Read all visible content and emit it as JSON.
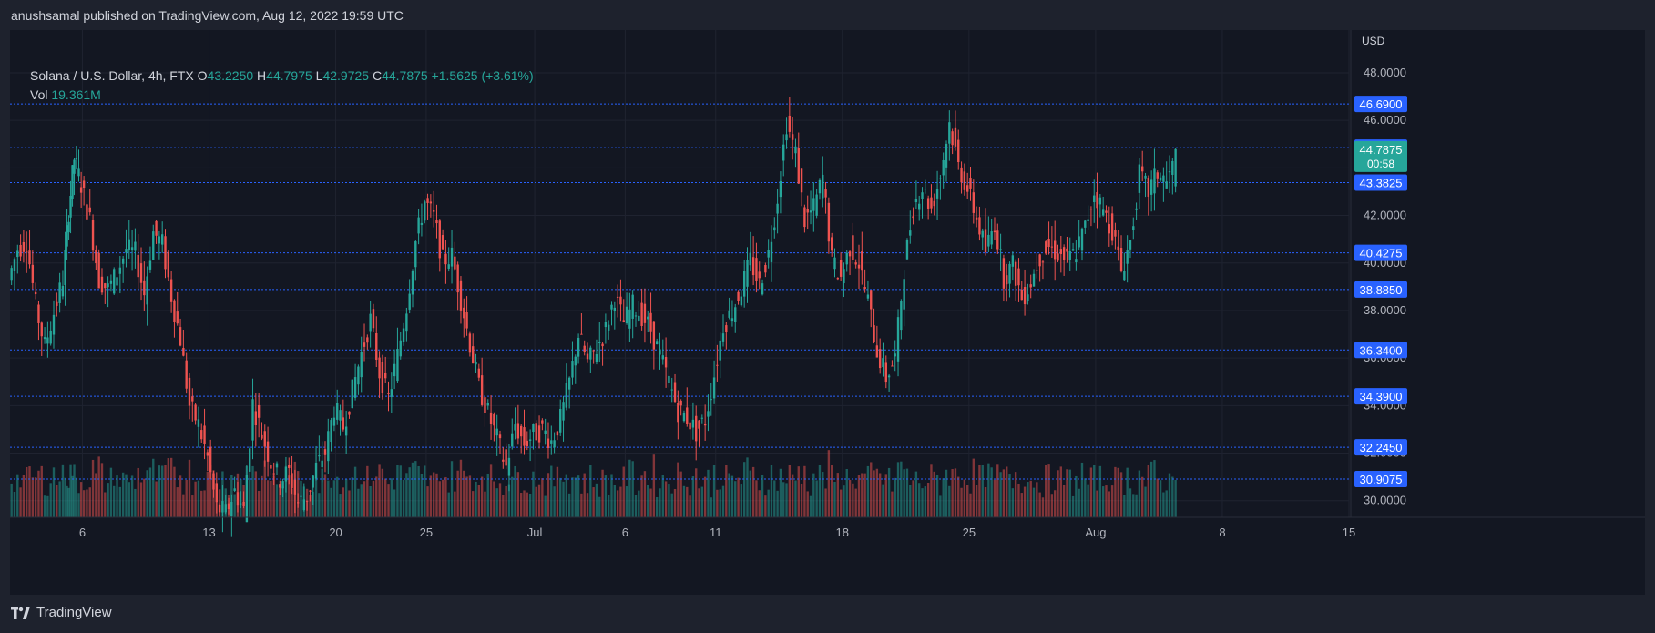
{
  "header": {
    "publish_line": "anushsamal published on TradingView.com, Aug 12, 2022 19:59 UTC"
  },
  "legend": {
    "symbol": "Solana / U.S. Dollar, 4h, FTX",
    "o_label": "O",
    "o_value": "43.2250",
    "h_label": "H",
    "h_value": "44.7975",
    "l_label": "L",
    "l_value": "42.9725",
    "c_label": "C",
    "c_value": "44.7875",
    "change": "+1.5625 (+3.61%)",
    "vol_label": "Vol",
    "vol_value": "19.361M"
  },
  "footer": {
    "brand": "TradingView"
  },
  "colors": {
    "up": "#26a69a",
    "down": "#ef5350",
    "level_line": "#2962ff",
    "level_badge": "#2962ff",
    "price_badge": "#26a69a"
  },
  "chart_data": {
    "type": "candlestick",
    "symbol": "Solana / U.S. Dollar",
    "interval": "4h",
    "currency": "USD",
    "ylim": [
      29.3,
      49.8
    ],
    "y_ticks": [
      30,
      32,
      34,
      36,
      38,
      40,
      42,
      44,
      46,
      48
    ],
    "y_tick_labels": [
      "30.0000",
      "32.0000",
      "34.0000",
      "36.0000",
      "38.0000",
      "40.0000",
      "42.0000",
      "44.0000",
      "46.0000",
      "48.0000"
    ],
    "x_ticks": [
      {
        "label": "6",
        "x": 1.0
      },
      {
        "label": "13",
        "x": 8.0
      },
      {
        "label": "20",
        "x": 15.0
      },
      {
        "label": "25",
        "x": 20.0
      },
      {
        "label": "Jul",
        "x": 26.0
      },
      {
        "label": "6",
        "x": 31.0
      },
      {
        "label": "11",
        "x": 36.0
      },
      {
        "label": "18",
        "x": 43.0
      },
      {
        "label": "25",
        "x": 50.0
      },
      {
        "label": "Aug",
        "x": 57.0
      },
      {
        "label": "8",
        "x": 64.0
      },
      {
        "label": "15",
        "x": 71.0
      }
    ],
    "x_range": [
      -3.0,
      71.0
    ],
    "levels": [
      46.69,
      44.85,
      43.3825,
      40.4275,
      38.885,
      36.34,
      34.39,
      32.245,
      30.9075
    ],
    "level_labels": [
      "46.6900",
      "44.8500",
      "43.3825",
      "40.4275",
      "38.8850",
      "36.3400",
      "34.3900",
      "32.2450",
      "30.9075"
    ],
    "last_price": "44.7875",
    "countdown": "00:58",
    "daily_closes": [
      {
        "x": -3.0,
        "c": 39.3
      },
      {
        "x": -2.5,
        "c": 40.6
      },
      {
        "x": -2.0,
        "c": 40.9
      },
      {
        "x": -1.5,
        "c": 38.2
      },
      {
        "x": -1.0,
        "c": 36.5
      },
      {
        "x": -0.5,
        "c": 37.9
      },
      {
        "x": 0.0,
        "c": 39.3
      },
      {
        "x": 0.3,
        "c": 42.2
      },
      {
        "x": 0.6,
        "c": 44.4
      },
      {
        "x": 1.0,
        "c": 43.3
      },
      {
        "x": 1.5,
        "c": 41.8
      },
      {
        "x": 2.0,
        "c": 39.3
      },
      {
        "x": 2.5,
        "c": 38.9
      },
      {
        "x": 3.0,
        "c": 39.6
      },
      {
        "x": 3.5,
        "c": 40.6
      },
      {
        "x": 4.0,
        "c": 40.4
      },
      {
        "x": 4.5,
        "c": 38.7
      },
      {
        "x": 5.0,
        "c": 41.3
      },
      {
        "x": 5.5,
        "c": 40.8
      },
      {
        "x": 6.0,
        "c": 38.6
      },
      {
        "x": 6.5,
        "c": 36.8
      },
      {
        "x": 7.0,
        "c": 34.0
      },
      {
        "x": 7.5,
        "c": 33.2
      },
      {
        "x": 8.0,
        "c": 31.8
      },
      {
        "x": 8.5,
        "c": 29.7
      },
      {
        "x": 9.0,
        "c": 29.5
      },
      {
        "x": 9.5,
        "c": 30.4
      },
      {
        "x": 10.0,
        "c": 29.6
      },
      {
        "x": 10.5,
        "c": 34.1
      },
      {
        "x": 11.0,
        "c": 32.8
      },
      {
        "x": 11.5,
        "c": 31.6
      },
      {
        "x": 12.0,
        "c": 30.9
      },
      {
        "x": 12.5,
        "c": 31.2
      },
      {
        "x": 13.0,
        "c": 29.9
      },
      {
        "x": 13.5,
        "c": 30.2
      },
      {
        "x": 14.0,
        "c": 31.4
      },
      {
        "x": 14.5,
        "c": 32.0
      },
      {
        "x": 15.0,
        "c": 33.9
      },
      {
        "x": 15.5,
        "c": 33.1
      },
      {
        "x": 16.0,
        "c": 34.6
      },
      {
        "x": 16.5,
        "c": 36.2
      },
      {
        "x": 17.0,
        "c": 37.6
      },
      {
        "x": 17.5,
        "c": 35.4
      },
      {
        "x": 18.0,
        "c": 34.3
      },
      {
        "x": 18.5,
        "c": 36.1
      },
      {
        "x": 19.0,
        "c": 38.2
      },
      {
        "x": 19.5,
        "c": 40.9
      },
      {
        "x": 20.0,
        "c": 42.6
      },
      {
        "x": 20.5,
        "c": 41.9
      },
      {
        "x": 21.0,
        "c": 40.1
      },
      {
        "x": 21.5,
        "c": 40.3
      },
      {
        "x": 22.0,
        "c": 38.5
      },
      {
        "x": 22.5,
        "c": 36.6
      },
      {
        "x": 23.0,
        "c": 34.8
      },
      {
        "x": 23.5,
        "c": 33.7
      },
      {
        "x": 24.0,
        "c": 32.6
      },
      {
        "x": 24.5,
        "c": 31.4
      },
      {
        "x": 25.0,
        "c": 33.2
      },
      {
        "x": 25.5,
        "c": 32.4
      },
      {
        "x": 26.0,
        "c": 32.8
      },
      {
        "x": 26.5,
        "c": 33.0
      },
      {
        "x": 27.0,
        "c": 32.5
      },
      {
        "x": 27.5,
        "c": 33.4
      },
      {
        "x": 28.0,
        "c": 35.0
      },
      {
        "x": 28.5,
        "c": 37.0
      },
      {
        "x": 29.0,
        "c": 35.8
      },
      {
        "x": 29.5,
        "c": 36.4
      },
      {
        "x": 30.0,
        "c": 37.2
      },
      {
        "x": 30.5,
        "c": 38.6
      },
      {
        "x": 31.0,
        "c": 37.5
      },
      {
        "x": 31.5,
        "c": 38.2
      },
      {
        "x": 32.0,
        "c": 37.8
      },
      {
        "x": 32.5,
        "c": 37.2
      },
      {
        "x": 33.0,
        "c": 36.1
      },
      {
        "x": 33.5,
        "c": 35.0
      },
      {
        "x": 34.0,
        "c": 33.8
      },
      {
        "x": 34.5,
        "c": 33.5
      },
      {
        "x": 35.0,
        "c": 32.9
      },
      {
        "x": 35.5,
        "c": 33.4
      },
      {
        "x": 36.0,
        "c": 35.3
      },
      {
        "x": 36.5,
        "c": 37.4
      },
      {
        "x": 37.0,
        "c": 38.0
      },
      {
        "x": 37.5,
        "c": 38.9
      },
      {
        "x": 38.0,
        "c": 40.1
      },
      {
        "x": 38.5,
        "c": 39.1
      },
      {
        "x": 39.0,
        "c": 40.4
      },
      {
        "x": 39.5,
        "c": 42.8
      },
      {
        "x": 40.0,
        "c": 45.9
      },
      {
        "x": 40.5,
        "c": 44.6
      },
      {
        "x": 41.0,
        "c": 41.8
      },
      {
        "x": 41.5,
        "c": 42.3
      },
      {
        "x": 42.0,
        "c": 43.6
      },
      {
        "x": 42.5,
        "c": 40.1
      },
      {
        "x": 43.0,
        "c": 39.4
      },
      {
        "x": 43.5,
        "c": 40.7
      },
      {
        "x": 44.0,
        "c": 40.0
      },
      {
        "x": 44.5,
        "c": 38.4
      },
      {
        "x": 45.0,
        "c": 36.3
      },
      {
        "x": 45.5,
        "c": 35.2
      },
      {
        "x": 46.0,
        "c": 36.0
      },
      {
        "x": 46.5,
        "c": 39.8
      },
      {
        "x": 47.0,
        "c": 42.4
      },
      {
        "x": 47.5,
        "c": 43.2
      },
      {
        "x": 48.0,
        "c": 42.3
      },
      {
        "x": 48.5,
        "c": 43.7
      },
      {
        "x": 49.0,
        "c": 45.9
      },
      {
        "x": 49.5,
        "c": 44.1
      },
      {
        "x": 50.0,
        "c": 43.1
      },
      {
        "x": 50.5,
        "c": 41.9
      },
      {
        "x": 51.0,
        "c": 40.5
      },
      {
        "x": 51.5,
        "c": 41.7
      },
      {
        "x": 52.0,
        "c": 39.4
      },
      {
        "x": 52.5,
        "c": 39.9
      },
      {
        "x": 53.0,
        "c": 38.5
      },
      {
        "x": 53.5,
        "c": 39.2
      },
      {
        "x": 54.0,
        "c": 40.3
      },
      {
        "x": 54.5,
        "c": 40.7
      },
      {
        "x": 55.0,
        "c": 40.4
      },
      {
        "x": 55.5,
        "c": 40.1
      },
      {
        "x": 56.0,
        "c": 40.5
      },
      {
        "x": 56.5,
        "c": 41.5
      },
      {
        "x": 57.0,
        "c": 43.0
      },
      {
        "x": 57.5,
        "c": 42.2
      },
      {
        "x": 58.0,
        "c": 41.4
      },
      {
        "x": 58.5,
        "c": 39.7
      },
      {
        "x": 59.0,
        "c": 40.9
      },
      {
        "x": 59.5,
        "c": 43.7
      },
      {
        "x": 60.0,
        "c": 43.0
      },
      {
        "x": 60.5,
        "c": 43.8
      },
      {
        "x": 61.0,
        "c": 43.4
      },
      {
        "x": 61.5,
        "c": 44.3
      }
    ]
  }
}
